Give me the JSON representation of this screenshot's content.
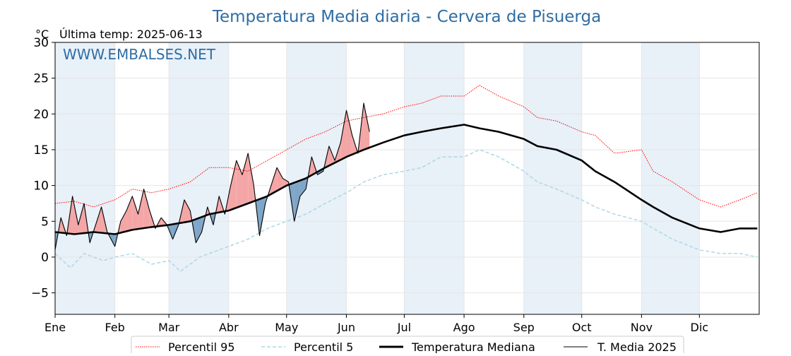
{
  "chart_data": {
    "type": "line",
    "title": "Temperatura Media diaria - Cervera de Pisuerga",
    "unit_label": "°C",
    "last_temp_label": "Última temp: 2025-06-13",
    "watermark": "WWW.EMBALSES.NET",
    "xlabel": "",
    "ylabel": "",
    "ylim": [
      -8,
      30
    ],
    "yticks": [
      -5,
      0,
      5,
      10,
      15,
      20,
      25,
      30
    ],
    "xlim_days": [
      0,
      365
    ],
    "months": [
      "Ene",
      "Feb",
      "Mar",
      "Abr",
      "May",
      "Jun",
      "Jul",
      "Ago",
      "Sep",
      "Oct",
      "Nov",
      "Dic"
    ],
    "month_start_day": [
      0,
      31,
      59,
      90,
      120,
      151,
      181,
      212,
      243,
      273,
      304,
      334
    ],
    "legend_position": "bottom",
    "colors": {
      "p95": "#ff0000",
      "p5": "#add8e6",
      "median": "#000000",
      "current": "#000000",
      "above_fill": "#f4a6a6",
      "below_fill": "#7ea6c8",
      "title": "#2e6da4",
      "watermark": "#2e6da4",
      "band": "#e8f0f8"
    },
    "series": [
      {
        "name": "Percentil 95",
        "style": "dotted-red",
        "x": [
          0,
          10,
          20,
          31,
          40,
          50,
          59,
          70,
          80,
          90,
          100,
          110,
          120,
          130,
          140,
          151,
          160,
          170,
          181,
          190,
          200,
          212,
          220,
          230,
          243,
          250,
          260,
          273,
          280,
          290,
          304,
          310,
          320,
          334,
          345,
          355,
          364
        ],
        "values": [
          7.5,
          7.8,
          7.0,
          8.0,
          9.5,
          9.0,
          9.5,
          10.5,
          12.5,
          12.5,
          12.0,
          13.5,
          15.0,
          16.5,
          17.5,
          19.0,
          19.5,
          20.0,
          21.0,
          21.5,
          22.5,
          22.5,
          24.0,
          22.5,
          21.0,
          19.5,
          19.0,
          17.5,
          17.0,
          14.5,
          15.0,
          12.0,
          10.5,
          8.0,
          7.0,
          8.0,
          9.0
        ]
      },
      {
        "name": "Percentil 5",
        "style": "dashed-lightblue",
        "x": [
          0,
          8,
          15,
          25,
          31,
          40,
          50,
          59,
          65,
          75,
          90,
          100,
          110,
          120,
          130,
          140,
          151,
          160,
          170,
          181,
          190,
          200,
          212,
          220,
          230,
          243,
          250,
          260,
          273,
          280,
          290,
          304,
          310,
          320,
          334,
          345,
          355,
          364
        ],
        "values": [
          0.5,
          -1.5,
          0.5,
          -0.5,
          0.0,
          0.5,
          -1.0,
          -0.5,
          -2.0,
          0.0,
          1.5,
          2.5,
          4.0,
          5.0,
          6.0,
          7.5,
          9.0,
          10.5,
          11.5,
          12.0,
          12.5,
          14.0,
          14.0,
          15.0,
          14.0,
          12.0,
          10.5,
          9.5,
          8.0,
          7.0,
          6.0,
          5.0,
          4.0,
          2.5,
          1.0,
          0.5,
          0.5,
          0.0
        ]
      },
      {
        "name": "Temperatura Mediana",
        "style": "thick-black",
        "x": [
          0,
          10,
          20,
          31,
          40,
          50,
          59,
          70,
          80,
          90,
          100,
          110,
          120,
          130,
          140,
          151,
          160,
          170,
          181,
          190,
          200,
          212,
          220,
          230,
          243,
          250,
          260,
          273,
          280,
          290,
          304,
          310,
          320,
          334,
          345,
          355,
          364
        ],
        "values": [
          3.5,
          3.2,
          3.5,
          3.2,
          3.8,
          4.2,
          4.5,
          5.0,
          6.0,
          6.5,
          7.5,
          8.5,
          10.0,
          11.0,
          12.5,
          14.0,
          15.0,
          16.0,
          17.0,
          17.5,
          18.0,
          18.5,
          18.0,
          17.5,
          16.5,
          15.5,
          15.0,
          13.5,
          12.0,
          10.5,
          8.0,
          7.0,
          5.5,
          4.0,
          3.5,
          4.0,
          4.0
        ]
      },
      {
        "name": "T. Media 2025",
        "style": "thin-black",
        "x": [
          0,
          3,
          6,
          9,
          12,
          15,
          18,
          21,
          24,
          27,
          31,
          34,
          37,
          40,
          43,
          46,
          49,
          52,
          55,
          58,
          61,
          64,
          67,
          70,
          73,
          76,
          79,
          82,
          85,
          88,
          91,
          94,
          97,
          100,
          103,
          106,
          109,
          112,
          115,
          118,
          121,
          124,
          127,
          130,
          133,
          136,
          139,
          142,
          145,
          148,
          151,
          154,
          157,
          160,
          163
        ],
        "values": [
          1.0,
          5.5,
          3.0,
          8.5,
          4.5,
          7.5,
          2.0,
          4.5,
          7.0,
          3.5,
          1.5,
          5.0,
          6.5,
          8.5,
          6.0,
          9.5,
          6.5,
          4.0,
          5.5,
          4.5,
          2.5,
          4.5,
          8.0,
          6.5,
          2.0,
          3.5,
          7.0,
          4.5,
          8.5,
          6.0,
          10.0,
          13.5,
          11.5,
          14.5,
          10.0,
          3.0,
          7.5,
          10.0,
          12.5,
          11.0,
          10.5,
          5.0,
          8.5,
          9.5,
          14.0,
          11.5,
          12.0,
          15.5,
          13.5,
          16.0,
          20.5,
          17.0,
          14.5,
          21.5,
          17.5
        ]
      }
    ],
    "legend": [
      "Percentil 95",
      "Percentil 5",
      "Temperatura Mediana",
      "T. Media 2025"
    ]
  }
}
